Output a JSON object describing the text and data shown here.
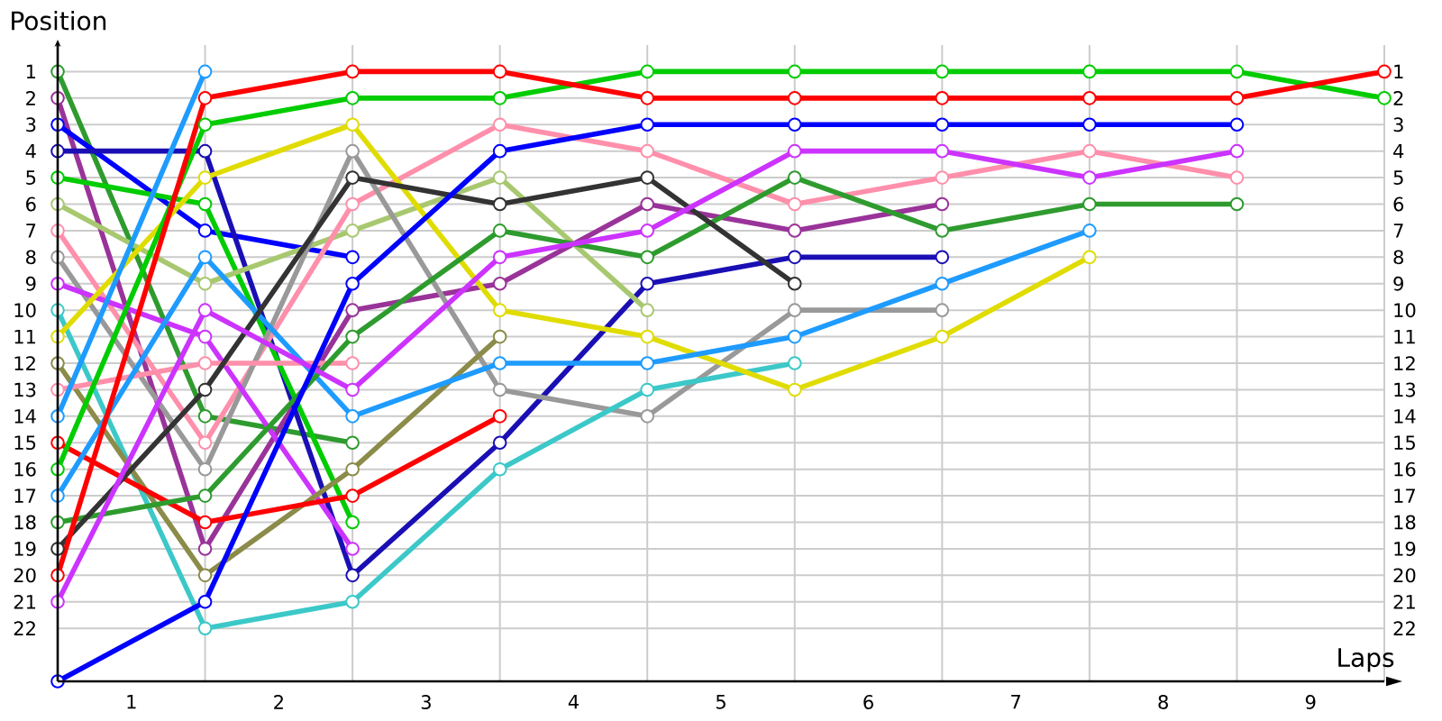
{
  "chart_data": {
    "type": "line",
    "xlabel": "Laps",
    "ylabel": "Position",
    "x": [
      0,
      1,
      2,
      3,
      4,
      5,
      6,
      7,
      8,
      9
    ],
    "xlim": [
      0,
      9
    ],
    "xticks": [
      {
        "value": 0,
        "label": null
      },
      {
        "value": 0.5,
        "label": "1"
      },
      {
        "value": 1,
        "label": null
      },
      {
        "value": 1.5,
        "label": "2"
      },
      {
        "value": 2,
        "label": null
      },
      {
        "value": 2.5,
        "label": "3"
      },
      {
        "value": 3,
        "label": null
      },
      {
        "value": 3.5,
        "label": "4"
      },
      {
        "value": 4,
        "label": null
      },
      {
        "value": 4.5,
        "label": "5"
      },
      {
        "value": 5,
        "label": null
      },
      {
        "value": 5.5,
        "label": "6"
      },
      {
        "value": 6,
        "label": null
      },
      {
        "value": 6.5,
        "label": "7"
      },
      {
        "value": 7,
        "label": null
      },
      {
        "value": 7.5,
        "label": "8"
      },
      {
        "value": 8,
        "label": null
      },
      {
        "value": 8.5,
        "label": "9"
      },
      {
        "value": 9,
        "label": null
      }
    ],
    "ylim": [
      24,
      0
    ],
    "yticks": [
      1,
      2,
      3,
      4,
      5,
      6,
      7,
      8,
      9,
      10,
      11,
      12,
      13,
      14,
      15,
      16,
      17,
      18,
      19,
      20,
      21,
      22
    ],
    "y2lim": [
      24,
      0
    ],
    "y2ticks": [
      1,
      2,
      3,
      4,
      5,
      6,
      7,
      8,
      9,
      10,
      11,
      12,
      13,
      14,
      15,
      16,
      17,
      18,
      19,
      20,
      21,
      22
    ],
    "grid": true,
    "marker": "circle",
    "line_style": "solid",
    "series": [
      {
        "color": "#2e9b2e",
        "values": [
          1,
          14,
          15,
          null,
          null,
          null,
          null,
          null,
          null,
          null
        ]
      },
      {
        "color": "#993399",
        "values": [
          2,
          19,
          10,
          9,
          6,
          7,
          6,
          null,
          null,
          null
        ]
      },
      {
        "color": "#0000ff",
        "values": [
          3,
          7,
          8,
          null,
          null,
          null,
          null,
          null,
          null,
          null
        ]
      },
      {
        "color": "#1a0fb4",
        "values": [
          4,
          4,
          20,
          15,
          9,
          8,
          8,
          null,
          null,
          null
        ]
      },
      {
        "color": "#00cc00",
        "values": [
          5,
          6,
          18,
          null,
          null,
          null,
          null,
          null,
          null,
          null
        ]
      },
      {
        "color": "#a8c870",
        "values": [
          6,
          9,
          7,
          5,
          10,
          null,
          null,
          null,
          null,
          null
        ]
      },
      {
        "color": "#ff8fab",
        "values": [
          7,
          15,
          6,
          3,
          4,
          6,
          5,
          4,
          5,
          null
        ]
      },
      {
        "color": "#999999",
        "values": [
          8,
          16,
          4,
          13,
          14,
          10,
          10,
          null,
          null,
          null
        ]
      },
      {
        "color": "#cc33ff",
        "values": [
          9,
          11,
          19,
          null,
          null,
          null,
          null,
          null,
          null,
          null
        ]
      },
      {
        "color": "#3cc8c8",
        "values": [
          10,
          22,
          21,
          16,
          13,
          12,
          null,
          null,
          null,
          null
        ]
      },
      {
        "color": "#e0dc00",
        "values": [
          11,
          5,
          3,
          10,
          11,
          13,
          11,
          8,
          null,
          null
        ]
      },
      {
        "color": "#8b8b4a",
        "values": [
          12,
          20,
          16,
          11,
          null,
          null,
          null,
          null,
          null,
          null
        ]
      },
      {
        "color": "#ff8fab",
        "values": [
          13,
          12,
          12,
          null,
          null,
          null,
          null,
          null,
          null,
          null
        ]
      },
      {
        "color": "#1e9bff",
        "values": [
          14,
          1,
          null,
          null,
          null,
          null,
          null,
          null,
          null,
          null
        ]
      },
      {
        "color": "#ff0000",
        "values": [
          15,
          18,
          17,
          14,
          null,
          null,
          null,
          null,
          null,
          null
        ]
      },
      {
        "color": "#00cc00",
        "values": [
          16,
          3,
          2,
          2,
          1,
          1,
          1,
          1,
          1,
          2
        ]
      },
      {
        "color": "#1e9bff",
        "values": [
          17,
          8,
          14,
          12,
          12,
          11,
          9,
          7,
          null,
          null
        ]
      },
      {
        "color": "#2e9b2e",
        "values": [
          18,
          17,
          11,
          7,
          8,
          5,
          7,
          6,
          6,
          null
        ]
      },
      {
        "color": "#333333",
        "values": [
          19,
          13,
          5,
          6,
          5,
          9,
          null,
          null,
          null,
          null
        ]
      },
      {
        "color": "#ff0000",
        "values": [
          20,
          2,
          1,
          1,
          2,
          2,
          2,
          2,
          2,
          1
        ]
      },
      {
        "color": "#cc33ff",
        "values": [
          21,
          10,
          13,
          8,
          7,
          4,
          4,
          5,
          4,
          null
        ]
      },
      {
        "color": "#0000ff",
        "values": [
          24,
          21,
          9,
          4,
          3,
          3,
          3,
          3,
          3,
          null
        ]
      }
    ]
  }
}
